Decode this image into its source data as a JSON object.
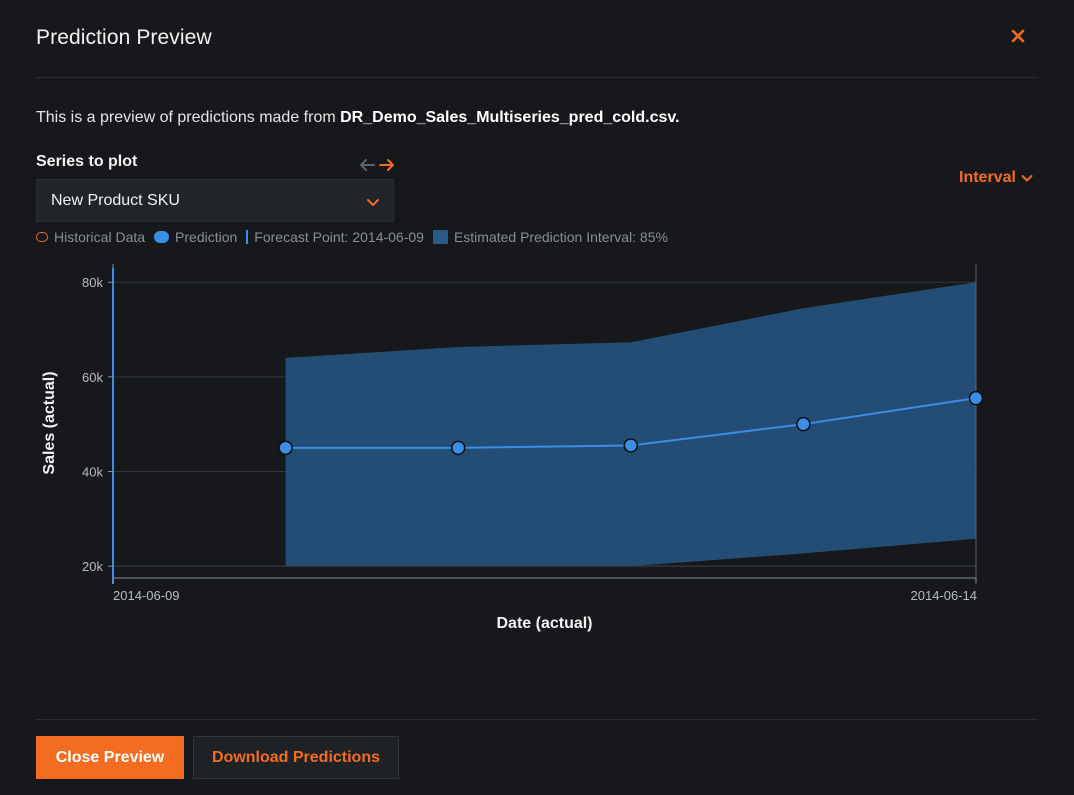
{
  "modal": {
    "title": "Prediction Preview",
    "description_prefix": "This is a preview of predictions made from ",
    "description_file": "DR_Demo_Sales_Multiseries_pred_cold.csv."
  },
  "series": {
    "label": "Series to plot",
    "selected": "New Product SKU"
  },
  "interval_toggle": "Interval",
  "legend": {
    "historical": "Historical Data",
    "prediction": "Prediction",
    "forecast_point": "Forecast Point: 2014-06-09",
    "interval": "Estimated Prediction Interval: 85%"
  },
  "footer": {
    "close_label": "Close Preview",
    "download_label": "Download Predictions"
  },
  "colors": {
    "accent": "#f26d21",
    "prediction": "#3a8ee6",
    "interval_band": "#25537d",
    "background": "#16181b"
  },
  "chart_data": {
    "type": "line",
    "xlabel": "Date (actual)",
    "ylabel": "Sales (actual)",
    "x": [
      "2014-06-10",
      "2014-06-11",
      "2014-06-12",
      "2014-06-13",
      "2014-06-14"
    ],
    "x_range": [
      "2014-06-09",
      "2014-06-14"
    ],
    "x_tick_labels": [
      "2014-06-09",
      "2014-06-14"
    ],
    "forecast_point": "2014-06-09",
    "ylim": [
      17500,
      83000
    ],
    "y_ticks": [
      20000,
      40000,
      60000,
      80000
    ],
    "y_tick_labels": [
      "20k",
      "40k",
      "60k",
      "80k"
    ],
    "grid": true,
    "series": [
      {
        "name": "Prediction",
        "values": [
          45000,
          45000,
          45500,
          50000,
          55500
        ]
      }
    ],
    "interval": {
      "name": "Estimated Prediction Interval: 85%",
      "upper": [
        64000,
        66300,
        67300,
        74500,
        80000
      ],
      "lower": [
        20000,
        19900,
        20000,
        22700,
        25800
      ]
    }
  }
}
